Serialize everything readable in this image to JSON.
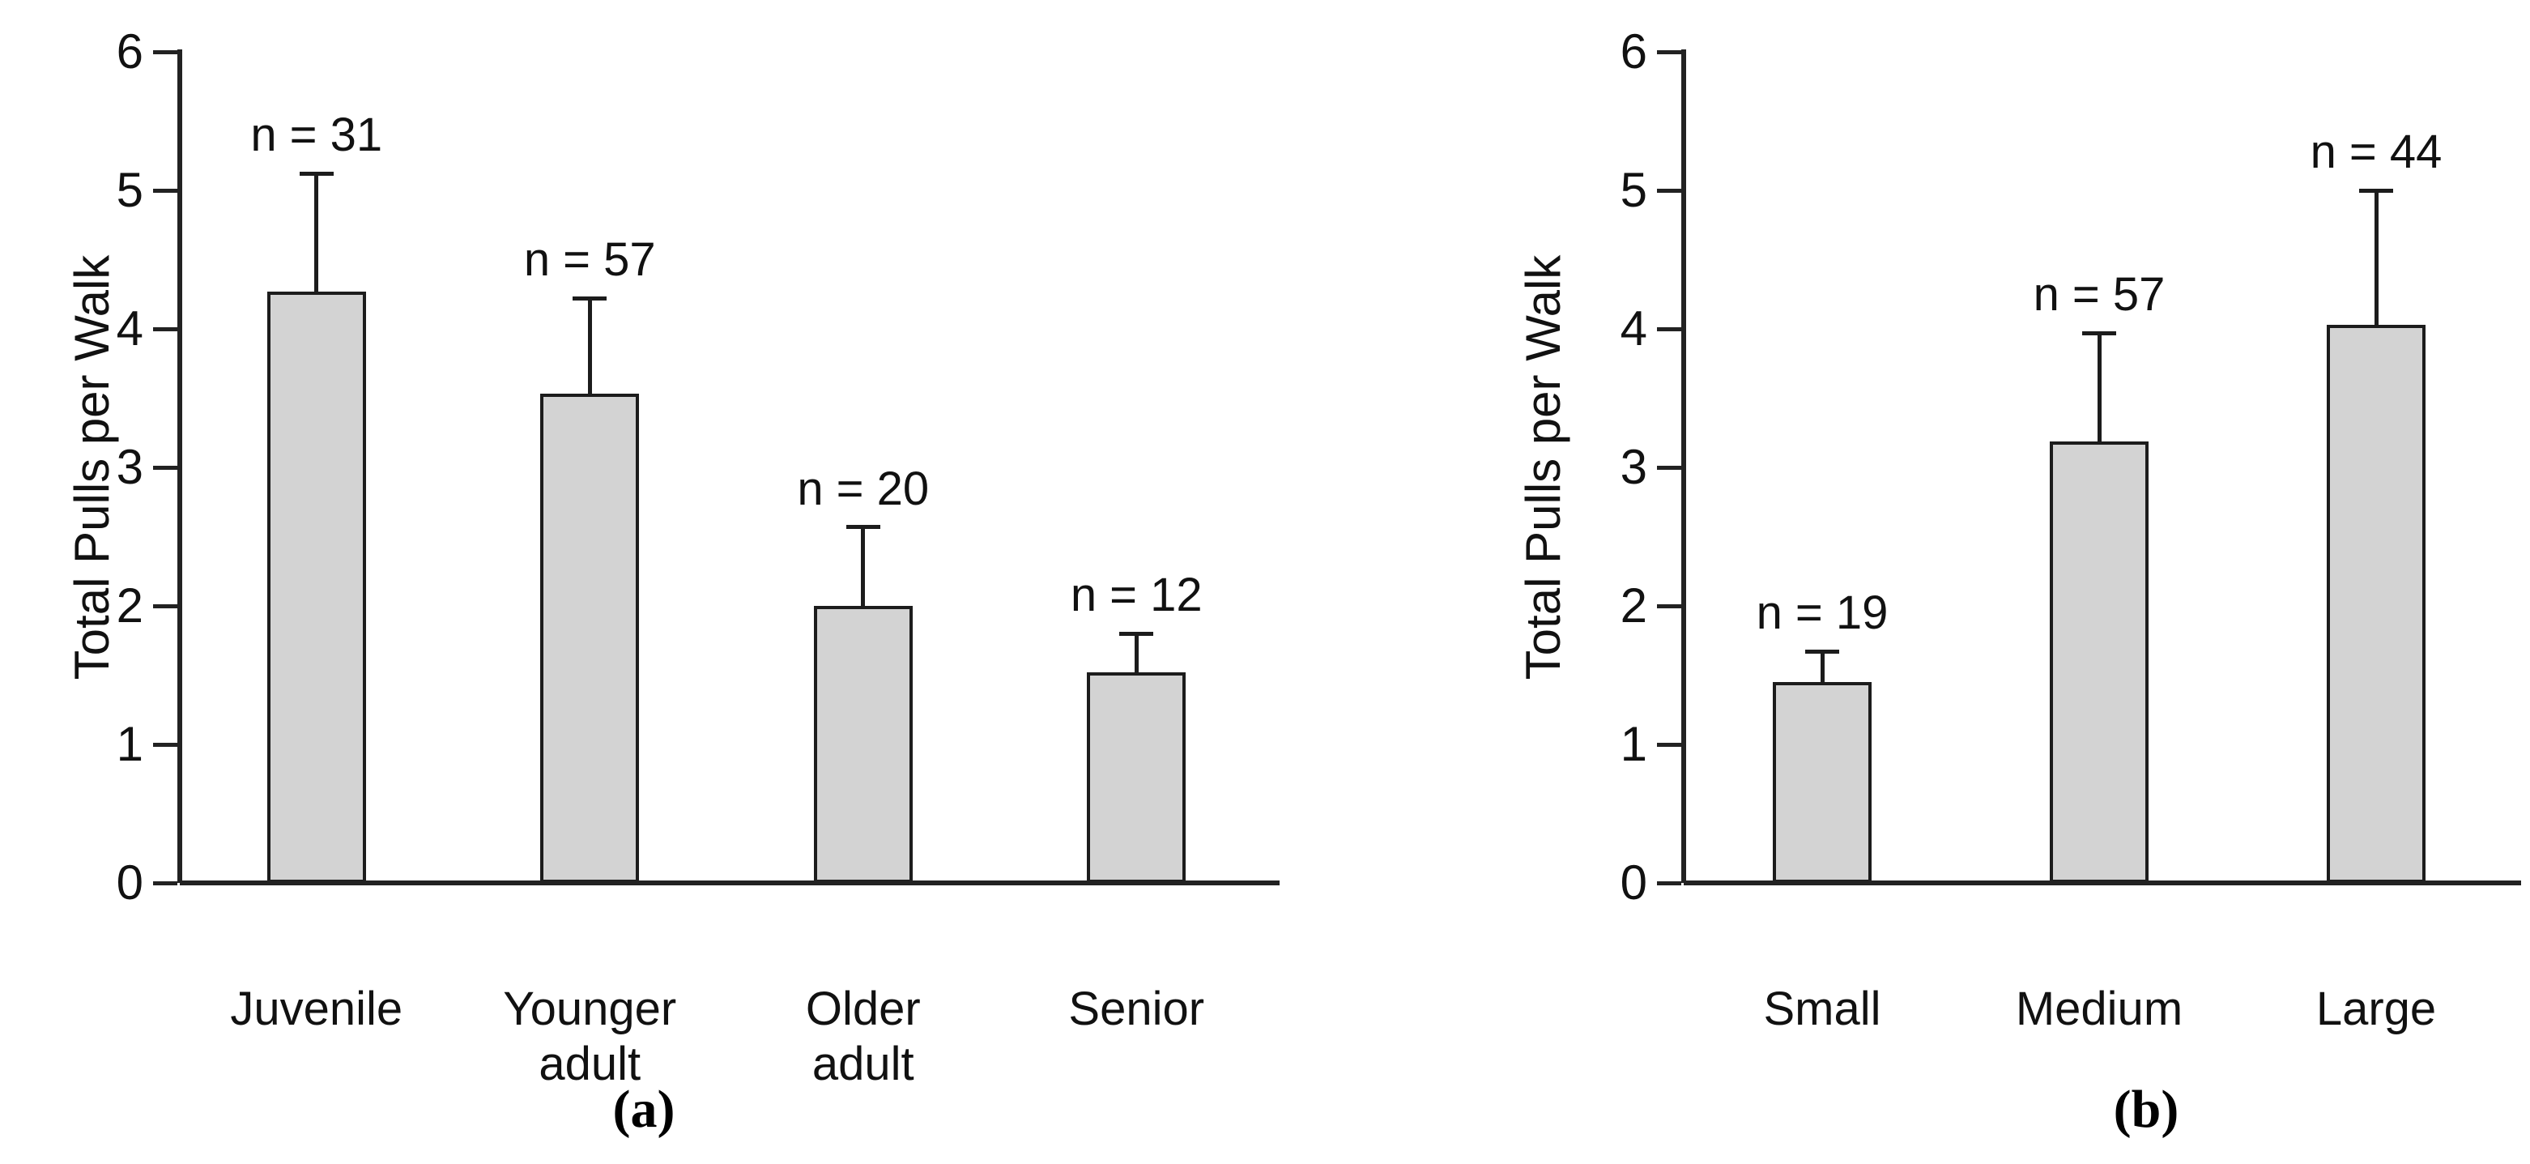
{
  "figure": {
    "background": "#ffffff",
    "text_color": "#111111",
    "axis_color": "#222222",
    "bar_fill": "#d3d3d3",
    "bar_edge": "#1c1c1c"
  },
  "chart_data": [
    {
      "id": "a",
      "type": "bar",
      "panel_label": "(a)",
      "title": "",
      "xlabel": "",
      "ylabel": "Total Pulls per Walk",
      "ylim": [
        0,
        6
      ],
      "yticks": [
        "0",
        "1",
        "2",
        "3",
        "4",
        "5",
        "6"
      ],
      "grid": false,
      "legend_position": "none",
      "categories": [
        "Juvenile",
        "Younger\nadult",
        "Older\nadult",
        "Senior"
      ],
      "values": [
        4.27,
        3.53,
        2.0,
        1.52
      ],
      "error_upper": [
        5.12,
        4.22,
        2.57,
        1.8
      ],
      "n_labels": [
        "n = 31",
        "n = 57",
        "n = 20",
        "n = 12"
      ]
    },
    {
      "id": "b",
      "type": "bar",
      "panel_label": "(b)",
      "title": "",
      "xlabel": "",
      "ylabel": "Total Pulls per Walk",
      "ylim": [
        0,
        6
      ],
      "yticks": [
        "0",
        "1",
        "2",
        "3",
        "4",
        "5",
        "6"
      ],
      "grid": false,
      "legend_position": "none",
      "categories": [
        "Small",
        "Medium",
        "Large"
      ],
      "values": [
        1.45,
        3.19,
        4.03
      ],
      "error_upper": [
        1.67,
        3.97,
        5.0
      ],
      "n_labels": [
        "n = 19",
        "n = 57",
        "n = 44"
      ]
    }
  ]
}
